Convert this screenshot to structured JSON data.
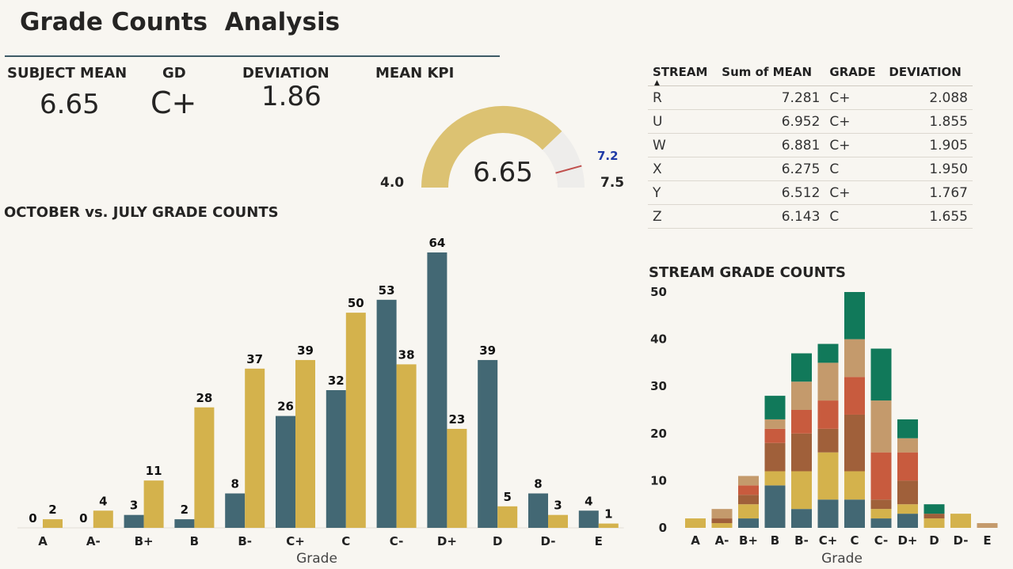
{
  "page": {
    "title": "Grade Counts  Analysis"
  },
  "kpis": [
    {
      "label": "SUBJECT MEAN",
      "value": "6.65"
    },
    {
      "label": "GD",
      "value": "C+"
    },
    {
      "label": "DEVIATION",
      "value": "1.86"
    }
  ],
  "gauge": {
    "label": "MEAN KPI",
    "value": 6.65,
    "value_text": "6.65",
    "min": 4.0,
    "min_text": "4.0",
    "max": 7.5,
    "max_text": "7.5",
    "target": 7.2,
    "target_text": "7.2",
    "fill_color": "#dcc272",
    "track_color": "#eeedeb",
    "target_color": "#c0504d",
    "target_label_color": "#1f3aa6"
  },
  "stream_table": {
    "headers": [
      "STREAM",
      "Sum of MEAN",
      "GRADE",
      "DEVIATION"
    ],
    "rows": [
      {
        "stream": "R",
        "mean": "7.281",
        "grade": "C+",
        "deviation": "2.088"
      },
      {
        "stream": "U",
        "mean": "6.952",
        "grade": "C+",
        "deviation": "1.855"
      },
      {
        "stream": "W",
        "mean": "6.881",
        "grade": "C+",
        "deviation": "1.905"
      },
      {
        "stream": "X",
        "mean": "6.275",
        "grade": "C",
        "deviation": "1.950"
      },
      {
        "stream": "Y",
        "mean": "6.512",
        "grade": "C+",
        "deviation": "1.767"
      },
      {
        "stream": "Z",
        "mean": "6.143",
        "grade": "C",
        "deviation": "1.655"
      }
    ]
  },
  "chart_data": [
    {
      "type": "bar",
      "title": "OCTOBER vs. JULY GRADE COUNTS",
      "xlabel": "Grade",
      "ylabel": "",
      "categories": [
        "A",
        "A-",
        "B+",
        "B",
        "B-",
        "C+",
        "C",
        "C-",
        "D+",
        "D",
        "D-",
        "E"
      ],
      "series": [
        {
          "color": "#436874",
          "values": [
            0,
            0,
            3,
            2,
            8,
            26,
            32,
            53,
            64,
            39,
            8,
            4
          ]
        },
        {
          "color": "#d4b24c",
          "values": [
            2,
            4,
            11,
            28,
            37,
            39,
            50,
            38,
            23,
            5,
            3,
            1
          ]
        }
      ],
      "ylim": [
        0,
        64
      ],
      "data_labels": true,
      "grid": false,
      "legend": "none"
    },
    {
      "type": "bar",
      "stacked": true,
      "title": "STREAM GRADE COUNTS",
      "xlabel": "Grade",
      "ylabel": "",
      "categories": [
        "A",
        "A-",
        "B+",
        "B",
        "B-",
        "C+",
        "C",
        "C-",
        "D+",
        "D",
        "D-",
        "E"
      ],
      "yticks": [
        0,
        10,
        20,
        30,
        40,
        50
      ],
      "ylim": [
        0,
        50
      ],
      "grid": false,
      "legend": "none",
      "series": [
        {
          "color": "#436874",
          "values": [
            0,
            0,
            2,
            9,
            4,
            6,
            6,
            2,
            3,
            0,
            0,
            0
          ]
        },
        {
          "color": "#d4b24c",
          "values": [
            2,
            1,
            3,
            3,
            8,
            10,
            6,
            2,
            2,
            2,
            3,
            0
          ]
        },
        {
          "color": "#a0603a",
          "values": [
            0,
            1,
            2,
            6,
            8,
            5,
            12,
            2,
            5,
            1,
            0,
            0
          ]
        },
        {
          "color": "#c85b3e",
          "values": [
            0,
            0,
            2,
            3,
            5,
            6,
            8,
            10,
            6,
            0,
            0,
            0
          ]
        },
        {
          "color": "#c49a6c",
          "values": [
            0,
            2,
            2,
            2,
            6,
            8,
            8,
            11,
            3,
            0,
            0,
            1
          ]
        },
        {
          "color": "#11795a",
          "values": [
            0,
            0,
            0,
            5,
            6,
            4,
            10,
            11,
            4,
            2,
            0,
            0
          ]
        }
      ]
    }
  ]
}
